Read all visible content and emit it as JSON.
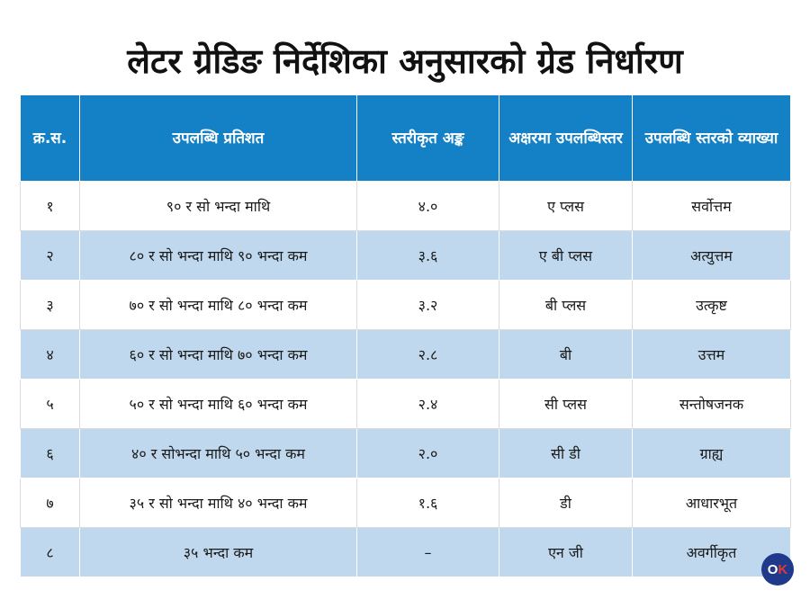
{
  "title": "लेटर ग्रेडिङ निर्देशिका अनुसारको ग्रेड निर्धारण",
  "table": {
    "headers": [
      "क्र.स.",
      "उपलब्धि प्रतिशत",
      "स्तरीकृत अङ्क",
      "अक्षरमा उपलब्धिस्तर",
      "उपलब्धि स्तरको व्याख्या"
    ],
    "rows": [
      [
        "१",
        "९० र सो भन्दा माथि",
        "४.०",
        "ए प्लस",
        "सर्वोत्तम"
      ],
      [
        "२",
        "८० र सो भन्दा माथि ९० भन्दा कम",
        "३.६",
        "ए बी प्लस",
        "अत्युत्तम"
      ],
      [
        "३",
        "७० र सो भन्दा माथि ८० भन्दा कम",
        "३.२",
        "बी प्लस",
        "उत्कृष्ट"
      ],
      [
        "४",
        "६० र सो भन्दा माथि ७० भन्दा कम",
        "२.८",
        "बी",
        "उत्तम"
      ],
      [
        "५",
        "५० र सो भन्दा माथि ६० भन्दा कम",
        "२.४",
        "सी प्लस",
        "सन्तोषजनक"
      ],
      [
        "६",
        "४० र सोभन्दा माथि ५० भन्दा कम",
        "२.०",
        "सी डी",
        "ग्राह्य"
      ],
      [
        "७",
        "३५ र सो भन्दा माथि ४० भन्दा कम",
        "१.६",
        "डी",
        "आधारभूत"
      ],
      [
        "८",
        "३५ भन्दा कम",
        "–",
        "एन जी",
        "अवर्गीकृत"
      ]
    ]
  },
  "logo": {
    "part1": "O",
    "part2": "K"
  },
  "colors": {
    "header_bg": "#1480c6",
    "alt_row_bg": "#bfd8ee",
    "logo_bg": "#1f3a8a"
  }
}
